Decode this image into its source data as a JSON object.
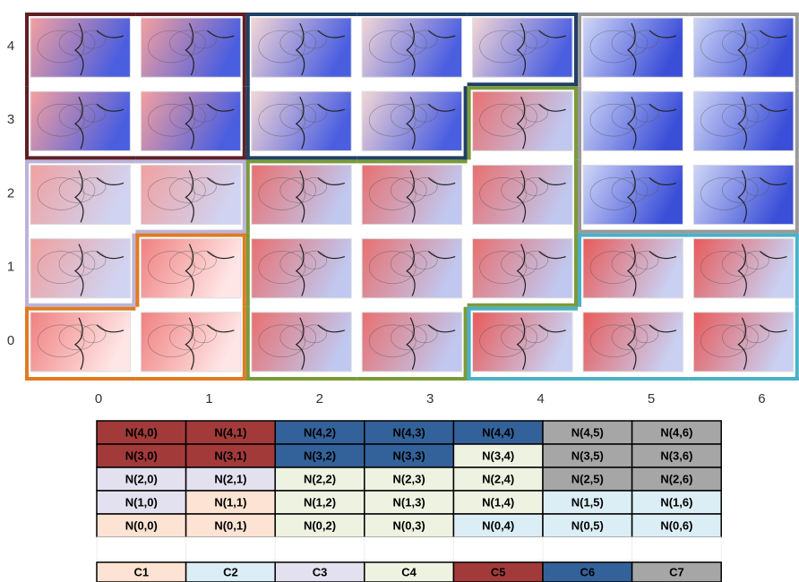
{
  "row_labels": [
    4,
    3,
    2,
    1,
    0
  ],
  "col_labels": [
    0,
    1,
    2,
    3,
    4,
    5,
    6
  ],
  "table": {
    "rows": [
      [
        {
          "label": "N(4,0)",
          "color": "#a33a3a"
        },
        {
          "label": "N(4,1)",
          "color": "#a33a3a"
        },
        {
          "label": "N(4,2)",
          "color": "#33629a"
        },
        {
          "label": "N(4,3)",
          "color": "#33629a"
        },
        {
          "label": "N(4,4)",
          "color": "#33629a"
        },
        {
          "label": "N(4,5)",
          "color": "#a6a6a6"
        },
        {
          "label": "N(4,6)",
          "color": "#a6a6a6"
        }
      ],
      [
        {
          "label": "N(3,0)",
          "color": "#a33a3a"
        },
        {
          "label": "N(3,1)",
          "color": "#a33a3a"
        },
        {
          "label": "N(3,2)",
          "color": "#33629a"
        },
        {
          "label": "N(3,3)",
          "color": "#33629a"
        },
        {
          "label": "N(3,4)",
          "color": "#eef2e1"
        },
        {
          "label": "N(3,5)",
          "color": "#a6a6a6"
        },
        {
          "label": "N(3,6)",
          "color": "#a6a6a6"
        }
      ],
      [
        {
          "label": "N(2,0)",
          "color": "#e3e0ef"
        },
        {
          "label": "N(2,1)",
          "color": "#e3e0ef"
        },
        {
          "label": "N(2,2)",
          "color": "#eef2e1"
        },
        {
          "label": "N(2,3)",
          "color": "#eef2e1"
        },
        {
          "label": "N(2,4)",
          "color": "#eef2e1"
        },
        {
          "label": "N(2,5)",
          "color": "#a6a6a6"
        },
        {
          "label": "N(2,6)",
          "color": "#a6a6a6"
        }
      ],
      [
        {
          "label": "N(1,0)",
          "color": "#e3e0ef"
        },
        {
          "label": "N(1,1)",
          "color": "#fce3d3"
        },
        {
          "label": "N(1,2)",
          "color": "#eef2e1"
        },
        {
          "label": "N(1,3)",
          "color": "#eef2e1"
        },
        {
          "label": "N(1,4)",
          "color": "#eef2e1"
        },
        {
          "label": "N(1,5)",
          "color": "#dbeef5"
        },
        {
          "label": "N(1,6)",
          "color": "#dbeef5"
        }
      ],
      [
        {
          "label": "N(0,0)",
          "color": "#fce3d3"
        },
        {
          "label": "N(0,1)",
          "color": "#fce3d3"
        },
        {
          "label": "N(0,2)",
          "color": "#eef2e1"
        },
        {
          "label": "N(0,3)",
          "color": "#eef2e1"
        },
        {
          "label": "N(0,4)",
          "color": "#dbeef5"
        },
        {
          "label": "N(0,5)",
          "color": "#dbeef5"
        },
        {
          "label": "N(0,6)",
          "color": "#dbeef5"
        }
      ]
    ]
  },
  "legend": [
    {
      "label": "C1",
      "color": "#fce3d3",
      "outline": "#e07b20"
    },
    {
      "label": "C2",
      "color": "#dbeef5",
      "outline": "#4ab0c8"
    },
    {
      "label": "C3",
      "color": "#e3e0ef",
      "outline": "#bcb2da"
    },
    {
      "label": "C4",
      "color": "#eef2e1",
      "outline": "#7a9a3a"
    },
    {
      "label": "C5",
      "color": "#a33a3a",
      "outline": "#5e1f24"
    },
    {
      "label": "C6",
      "color": "#33629a",
      "outline": "#1f3f66"
    },
    {
      "label": "C7",
      "color": "#a6a6a6",
      "outline": "#999999"
    }
  ]
}
